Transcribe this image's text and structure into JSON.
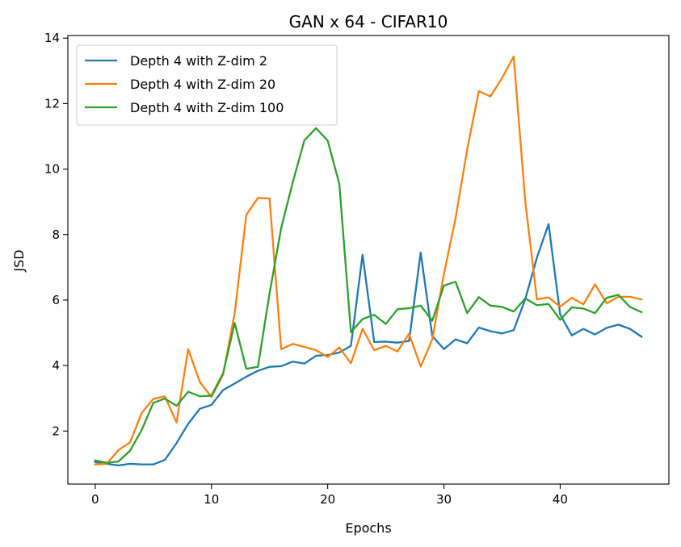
{
  "chart_data": {
    "type": "line",
    "title": "GAN x 64 - CIFAR10",
    "xlabel": "Epochs",
    "ylabel": "JSD",
    "xlim": [
      -2.35,
      49.35
    ],
    "ylim": [
      0.38,
      14.08
    ],
    "xticks": [
      0,
      10,
      20,
      30,
      40
    ],
    "yticks": [
      2,
      4,
      6,
      8,
      10,
      12,
      14
    ],
    "grid": false,
    "legend": "upper-left",
    "x": [
      0,
      1,
      2,
      3,
      4,
      5,
      6,
      7,
      8,
      9,
      10,
      11,
      12,
      13,
      14,
      15,
      16,
      17,
      18,
      19,
      20,
      21,
      22,
      23,
      24,
      25,
      26,
      27,
      28,
      29,
      30,
      31,
      32,
      33,
      34,
      35,
      36,
      37,
      38,
      39,
      40,
      41,
      42,
      43,
      44,
      45,
      46,
      47
    ],
    "series": [
      {
        "name": "Depth 4 with Z-dim 2",
        "color": "#1f77b4",
        "values": [
          1.05,
          1.0,
          0.95,
          1.0,
          0.98,
          0.98,
          1.12,
          1.63,
          2.22,
          2.68,
          2.8,
          3.25,
          3.45,
          3.66,
          3.84,
          3.96,
          3.98,
          4.12,
          4.06,
          4.3,
          4.32,
          4.4,
          4.6,
          7.38,
          4.72,
          4.73,
          4.7,
          4.75,
          7.45,
          4.9,
          4.5,
          4.8,
          4.68,
          5.16,
          5.05,
          4.98,
          5.08,
          6.03,
          7.3,
          8.32,
          5.56,
          4.92,
          5.12,
          4.95,
          5.15,
          5.25,
          5.12,
          4.88
        ]
      },
      {
        "name": "Depth 4 with Z-dim 20",
        "color": "#ff7f0e",
        "values": [
          0.98,
          1.0,
          1.42,
          1.65,
          2.55,
          2.98,
          3.06,
          2.26,
          4.5,
          3.5,
          3.04,
          3.72,
          5.6,
          8.6,
          9.12,
          9.1,
          4.5,
          4.66,
          4.57,
          4.47,
          4.26,
          4.55,
          4.07,
          5.12,
          4.47,
          4.6,
          4.43,
          4.97,
          3.97,
          4.8,
          6.8,
          8.5,
          10.6,
          12.38,
          12.22,
          12.78,
          13.44,
          9.0,
          6.02,
          6.08,
          5.8,
          6.07,
          5.87,
          6.48,
          5.9,
          6.1,
          6.1,
          6.02
        ]
      },
      {
        "name": "Depth 4 with Z-dim 100",
        "color": "#2ca02c",
        "values": [
          1.1,
          1.03,
          1.07,
          1.4,
          2.03,
          2.86,
          2.99,
          2.77,
          3.2,
          3.06,
          3.08,
          3.76,
          5.3,
          3.9,
          3.96,
          6.2,
          8.2,
          9.6,
          10.88,
          11.25,
          10.87,
          9.55,
          5.02,
          5.42,
          5.55,
          5.27,
          5.72,
          5.75,
          5.83,
          5.37,
          6.44,
          6.56,
          5.6,
          6.09,
          5.83,
          5.79,
          5.65,
          6.05,
          5.84,
          5.88,
          5.4,
          5.78,
          5.74,
          5.6,
          6.07,
          6.16,
          5.79,
          5.63
        ]
      }
    ]
  }
}
